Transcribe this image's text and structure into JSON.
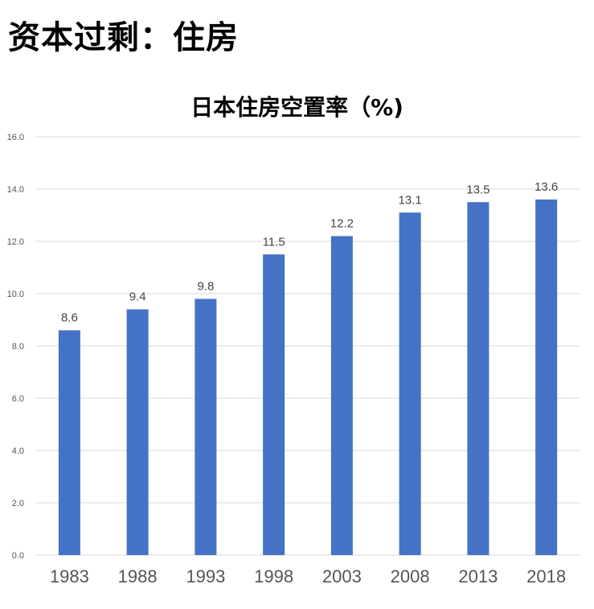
{
  "page": {
    "heading": "资本过剩：住房"
  },
  "chart_data": {
    "type": "bar",
    "title": "日本住房空置率（%)",
    "xlabel": "",
    "ylabel": "",
    "categories": [
      "1983",
      "1988",
      "1993",
      "1998",
      "2003",
      "2008",
      "2013",
      "2018"
    ],
    "values": [
      8.6,
      9.4,
      9.8,
      11.5,
      12.2,
      13.1,
      13.5,
      13.6
    ],
    "value_labels": [
      "8.6",
      "9.4",
      "9.8",
      "11.5",
      "12.2",
      "13.1",
      "13.5",
      "13.6"
    ],
    "ylim": [
      0,
      16
    ],
    "yticks": [
      0,
      2,
      4,
      6,
      8,
      10,
      12,
      14,
      16
    ],
    "ytick_labels": [
      "0.0",
      "2.0",
      "4.0",
      "6.0",
      "8.0",
      "10.0",
      "12.0",
      "14.0",
      "16.0"
    ],
    "grid": true,
    "legend": "none",
    "bar_color": "#4472C4",
    "gridline_color": "#d9d9d9"
  }
}
